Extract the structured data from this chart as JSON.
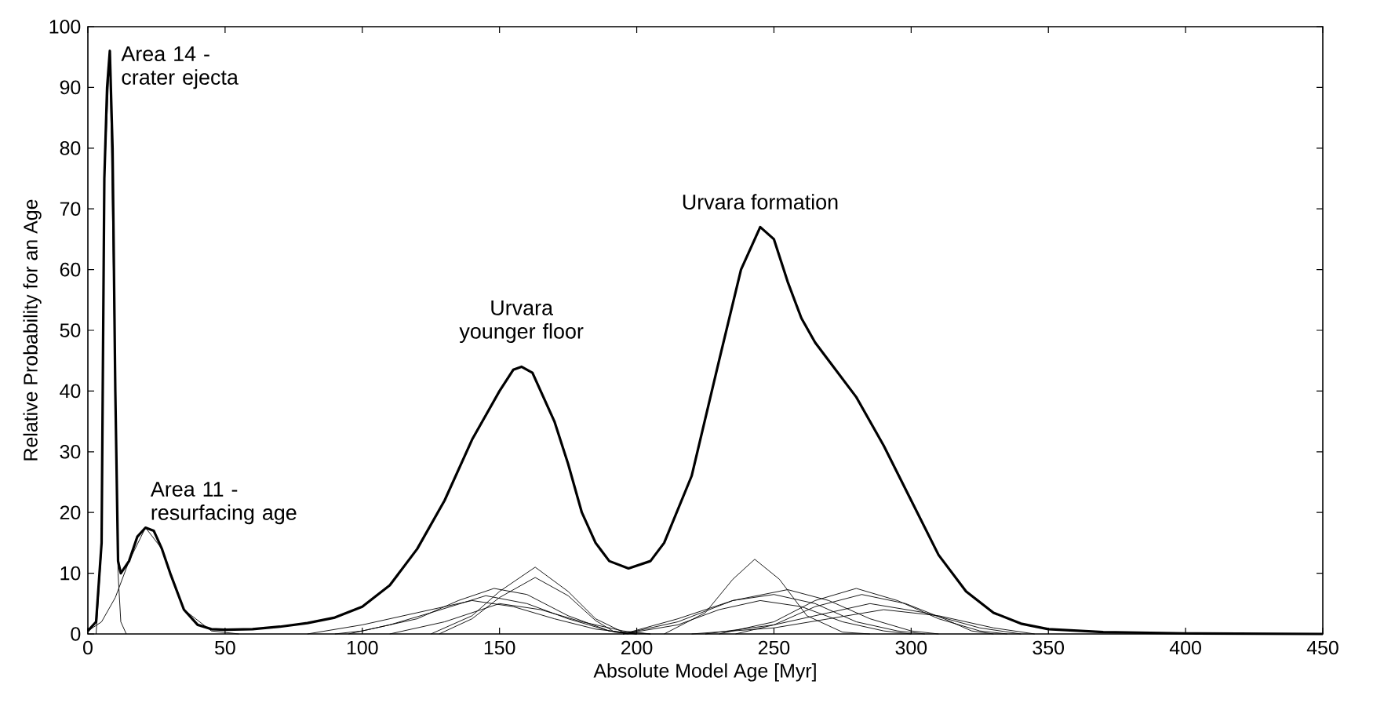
{
  "chart_data": {
    "type": "line",
    "xlabel": "Absolute Model Age [Myr]",
    "ylabel": "Relative Probability for an Age",
    "xlim": [
      0,
      450
    ],
    "ylim": [
      0,
      100
    ],
    "xticks": [
      0,
      50,
      100,
      150,
      200,
      250,
      300,
      350,
      400,
      450
    ],
    "yticks": [
      0,
      10,
      20,
      30,
      40,
      50,
      60,
      70,
      80,
      90,
      100
    ],
    "grid": false,
    "marker": "none",
    "line_style": "solid",
    "annotations": [
      {
        "text": "Area 14 - crater ejecta",
        "x": 8,
        "y": 96
      },
      {
        "text": "Area 11 - resurfacing age",
        "x": 21,
        "y": 17.5
      },
      {
        "text": "Urvara younger floor",
        "x": 158,
        "y": 44
      },
      {
        "text": "Urvara formation",
        "x": 245,
        "y": 67
      }
    ],
    "series": [
      {
        "color": "#000000",
        "x": [
          0,
          3,
          5,
          6,
          7,
          8,
          9,
          10,
          11,
          12,
          15,
          18,
          21,
          24,
          27,
          30,
          35,
          40,
          45,
          50,
          60,
          70,
          80,
          90,
          100,
          110,
          120,
          130,
          140,
          150,
          155,
          158,
          162,
          170,
          175,
          180,
          185,
          190,
          197,
          205,
          210,
          220,
          230,
          238,
          245,
          250,
          255,
          260,
          265,
          270,
          280,
          290,
          300,
          310,
          320,
          330,
          340,
          350,
          370,
          400,
          450
        ],
        "values": [
          0.5,
          2,
          15,
          75,
          90,
          96,
          80,
          40,
          12,
          10,
          12,
          16,
          17.5,
          17,
          14,
          10,
          4,
          1.5,
          0.8,
          0.7,
          0.8,
          1.2,
          1.8,
          2.7,
          4.5,
          8,
          14,
          22,
          32,
          40,
          43.5,
          44,
          43,
          35,
          28,
          20,
          15,
          12,
          10.8,
          12,
          15,
          26,
          45,
          60,
          67,
          65,
          58,
          52,
          48,
          45,
          39,
          31,
          22,
          13,
          7,
          3.5,
          1.7,
          0.8,
          0.3,
          0.1,
          0
        ]
      },
      {
        "color": "#000000",
        "x": [
          3,
          5,
          6,
          8,
          10,
          11,
          12,
          14
        ],
        "values": [
          0,
          14,
          75,
          96,
          40,
          10,
          2,
          0
        ]
      },
      {
        "color": "#000000",
        "x": [
          0,
          5,
          10,
          15,
          21,
          27,
          35,
          45,
          55
        ],
        "values": [
          0.5,
          2,
          6,
          12,
          17.5,
          14,
          4,
          0.5,
          0
        ]
      },
      {
        "color": "#000000",
        "x": [
          125,
          140,
          150,
          163,
          175,
          185,
          195,
          205
        ],
        "values": [
          0,
          3,
          7,
          11,
          7,
          2.5,
          0.3,
          0
        ]
      },
      {
        "color": "#000000",
        "x": [
          128,
          140,
          150,
          163,
          175,
          185,
          192,
          200
        ],
        "values": [
          0,
          2.5,
          6,
          9.3,
          6.3,
          2.2,
          0.3,
          0
        ]
      },
      {
        "color": "#000000",
        "x": [
          90,
          100,
          120,
          135,
          148,
          160,
          175,
          190,
          200
        ],
        "values": [
          0,
          0.5,
          2.5,
          5.5,
          7.5,
          6.5,
          3,
          0.5,
          0
        ]
      },
      {
        "color": "#000000",
        "x": [
          95,
          110,
          125,
          145,
          160,
          175,
          190,
          197
        ],
        "values": [
          0,
          1.5,
          3.5,
          6.3,
          5,
          2.5,
          0.5,
          0
        ]
      },
      {
        "color": "#000000",
        "x": [
          80,
          100,
          120,
          140,
          155,
          170,
          185,
          200
        ],
        "values": [
          0,
          1.5,
          3.5,
          5.5,
          4.5,
          2.5,
          0.8,
          0
        ]
      },
      {
        "color": "#000000",
        "x": [
          110,
          130,
          150,
          165,
          180,
          195,
          205
        ],
        "values": [
          0,
          2,
          5,
          4,
          2,
          0.5,
          0
        ]
      },
      {
        "color": "#000000",
        "x": [
          210,
          225,
          235,
          243,
          252,
          262,
          275,
          285
        ],
        "values": [
          0,
          3.5,
          9,
          12.3,
          9,
          3,
          0.3,
          0
        ]
      },
      {
        "color": "#000000",
        "x": [
          195,
          215,
          235,
          255,
          270,
          285,
          300,
          310
        ],
        "values": [
          0,
          2,
          5.5,
          7.3,
          5.5,
          2.5,
          0.5,
          0
        ]
      },
      {
        "color": "#000000",
        "x": [
          195,
          215,
          235,
          250,
          265,
          280,
          295,
          305
        ],
        "values": [
          0,
          2.5,
          5.5,
          6.5,
          5,
          2,
          0.5,
          0
        ]
      },
      {
        "color": "#000000",
        "x": [
          195,
          215,
          230,
          245,
          260,
          275,
          290,
          300
        ],
        "values": [
          0,
          1.5,
          4,
          5.5,
          4.5,
          2,
          0.5,
          0
        ]
      },
      {
        "color": "#000000",
        "x": [
          230,
          250,
          265,
          280,
          295,
          310,
          325,
          335
        ],
        "values": [
          0,
          2,
          5.5,
          7.5,
          5.5,
          2.5,
          0.5,
          0
        ]
      },
      {
        "color": "#000000",
        "x": [
          236,
          250,
          265,
          282,
          298,
          312,
          322,
          330
        ],
        "values": [
          0,
          1.5,
          4.5,
          6.5,
          5,
          2.5,
          0.5,
          0
        ]
      },
      {
        "color": "#000000",
        "x": [
          225,
          250,
          270,
          285,
          305,
          325,
          340
        ],
        "values": [
          0,
          1.5,
          3.5,
          5,
          3.5,
          1,
          0
        ]
      },
      {
        "color": "#000000",
        "x": [
          220,
          250,
          270,
          290,
          310,
          330,
          345
        ],
        "values": [
          0,
          1,
          2.5,
          4,
          3,
          1,
          0
        ]
      }
    ]
  }
}
